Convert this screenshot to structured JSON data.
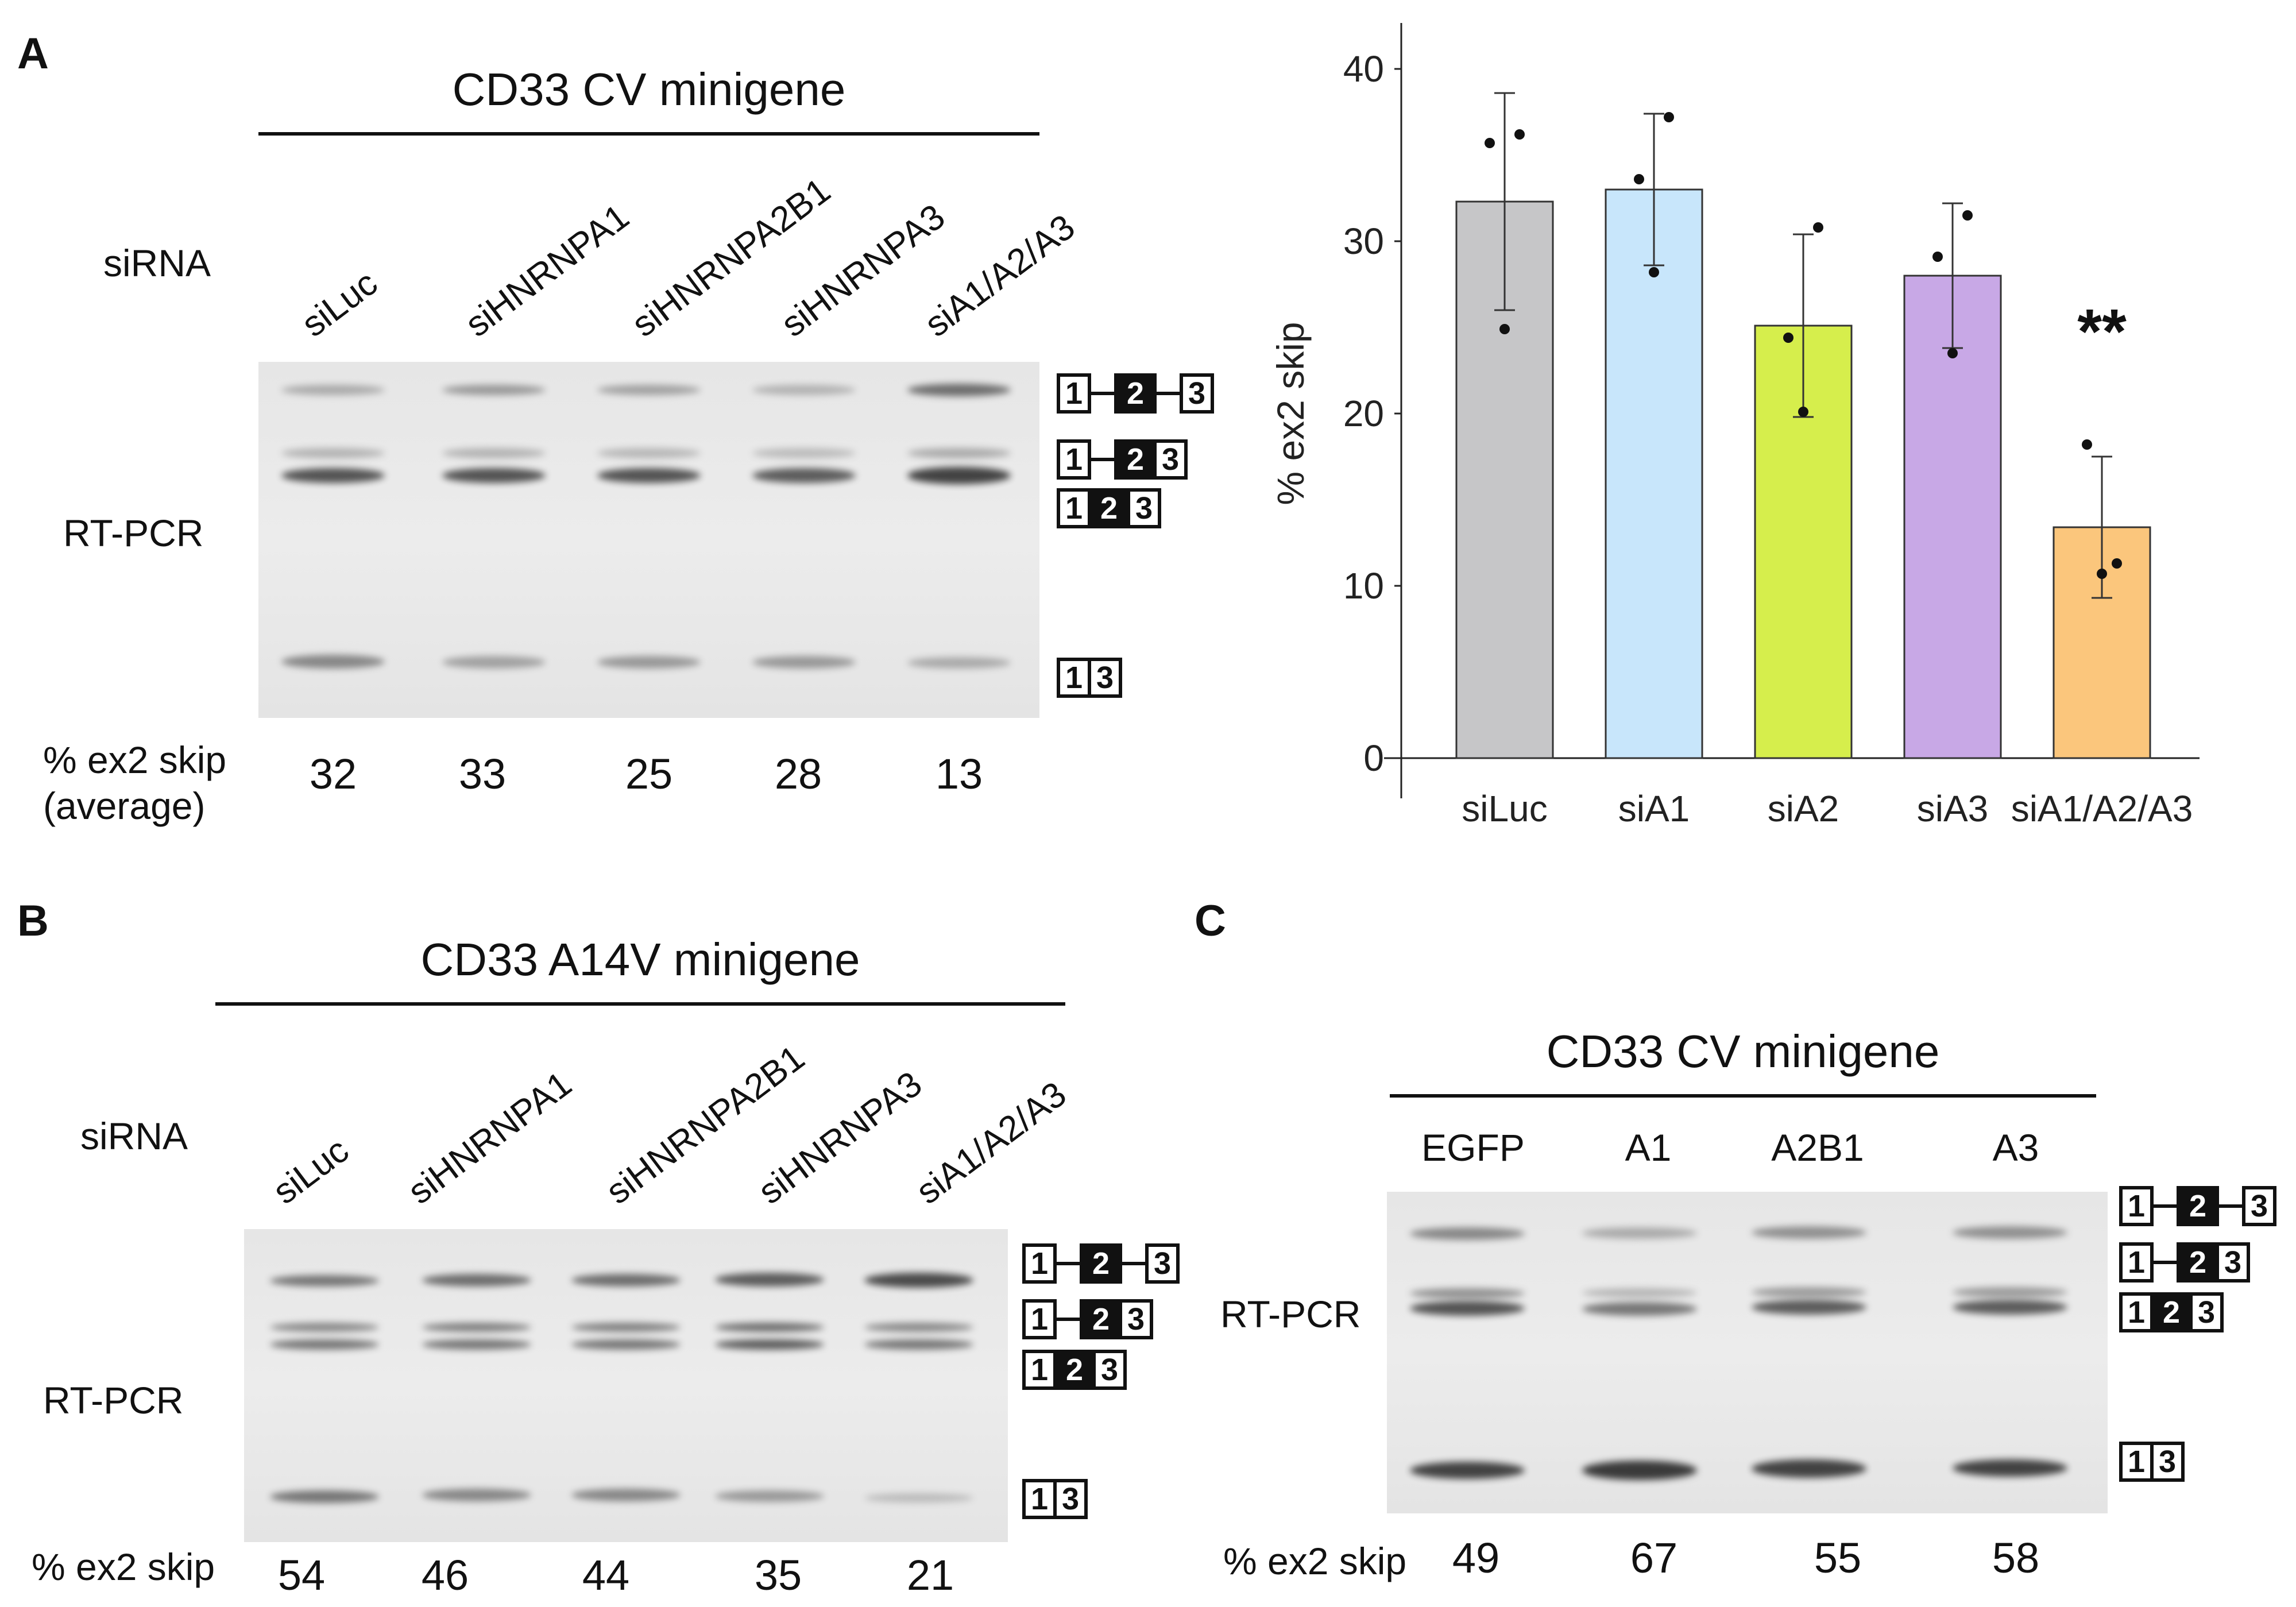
{
  "panels": {
    "A": {
      "letter": "A",
      "title": "CD33 CV minigene",
      "row_label_sirna": "siRNA",
      "row_label_rtpcr": "RT-PCR",
      "pct_label_line1": "% ex2 skip",
      "pct_label_line2": "(average)",
      "lanes": [
        "siLuc",
        "siHNRNPA1",
        "siHNRNPA2B1",
        "siHNRNPA3",
        "siA1/A2/A3"
      ],
      "pct_values": [
        "32",
        "33",
        "25",
        "28",
        "13"
      ]
    },
    "B": {
      "letter": "B",
      "title": "CD33 A14V minigene",
      "row_label_sirna": "siRNA",
      "row_label_rtpcr": "RT-PCR",
      "pct_label": "% ex2 skip",
      "lanes": [
        "siLuc",
        "siHNRNPA1",
        "siHNRNPA2B1",
        "siHNRNPA3",
        "siA1/A2/A3"
      ],
      "pct_values": [
        "54",
        "46",
        "44",
        "35",
        "21"
      ]
    },
    "C": {
      "letter": "C",
      "title": "CD33 CV minigene",
      "row_label_rtpcr": "RT-PCR",
      "pct_label": "% ex2 skip",
      "lanes": [
        "EGFP",
        "A1",
        "A2B1",
        "A3"
      ],
      "pct_values": [
        "49",
        "67",
        "55",
        "58"
      ]
    }
  },
  "exon_labels": {
    "e1": "1",
    "e2": "2",
    "e3": "3"
  },
  "chart_data": {
    "type": "bar",
    "categories": [
      "siLuc",
      "siA1",
      "siA2",
      "siA3",
      "siA1/A2/A3"
    ],
    "values": [
      32.3,
      33.0,
      25.1,
      28.0,
      13.4
    ],
    "errors": [
      6.3,
      4.4,
      5.3,
      4.2,
      4.1
    ],
    "points": [
      [
        35.7,
        36.2,
        24.9
      ],
      [
        33.6,
        37.2,
        28.2
      ],
      [
        24.4,
        30.8,
        20.1
      ],
      [
        29.1,
        31.5,
        23.5
      ],
      [
        18.2,
        11.3,
        10.7
      ]
    ],
    "colors": [
      "#c6c6c8",
      "#c8e6fb",
      "#d6ee4c",
      "#c8a8e6",
      "#fbc67c"
    ],
    "ylabel": "% ex2 skip",
    "ylim": [
      0,
      40
    ],
    "yticks": [
      0,
      10,
      20,
      30,
      40
    ],
    "annotation": "**",
    "grid": false
  }
}
